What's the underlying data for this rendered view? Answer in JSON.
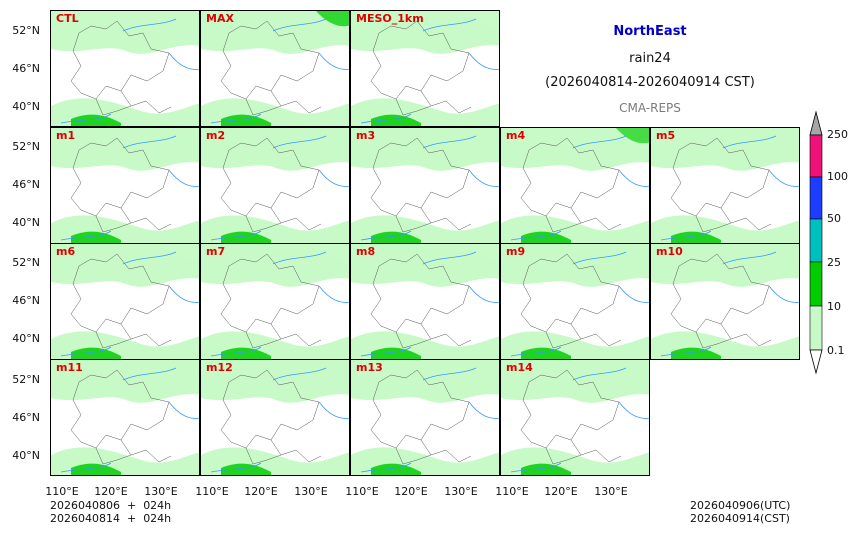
{
  "title": {
    "region": "NorthEast",
    "variable": "rain24",
    "period": "(2026040814-2026040914 CST)",
    "source": "CMA-REPS"
  },
  "panels": [
    {
      "label": "CTL"
    },
    {
      "label": "MAX"
    },
    {
      "label": "MESO_1km"
    },
    {
      "label": "m1"
    },
    {
      "label": "m2"
    },
    {
      "label": "m3"
    },
    {
      "label": "m4"
    },
    {
      "label": "m5"
    },
    {
      "label": "m6"
    },
    {
      "label": "m7"
    },
    {
      "label": "m8"
    },
    {
      "label": "m9"
    },
    {
      "label": "m10"
    },
    {
      "label": "m11"
    },
    {
      "label": "m12"
    },
    {
      "label": "m13"
    },
    {
      "label": "m14"
    }
  ],
  "lat_ticks": [
    "52°N",
    "46°N",
    "40°N"
  ],
  "lon_ticks": [
    "110°E",
    "120°E",
    "130°E"
  ],
  "init_info": [
    "2026040806  +  024h",
    "2026040814  +  024h"
  ],
  "valid_info": [
    "2026040906(UTC)",
    "2026040914(CST)"
  ],
  "colorbar": {
    "levels": [
      "0.1",
      "10",
      "25",
      "50",
      "100",
      "250"
    ],
    "colors": [
      "#c8fac8",
      "#00cc00",
      "#00bfbf",
      "#1c3cff",
      "#ee1177",
      "#a6a6a6"
    ]
  }
}
